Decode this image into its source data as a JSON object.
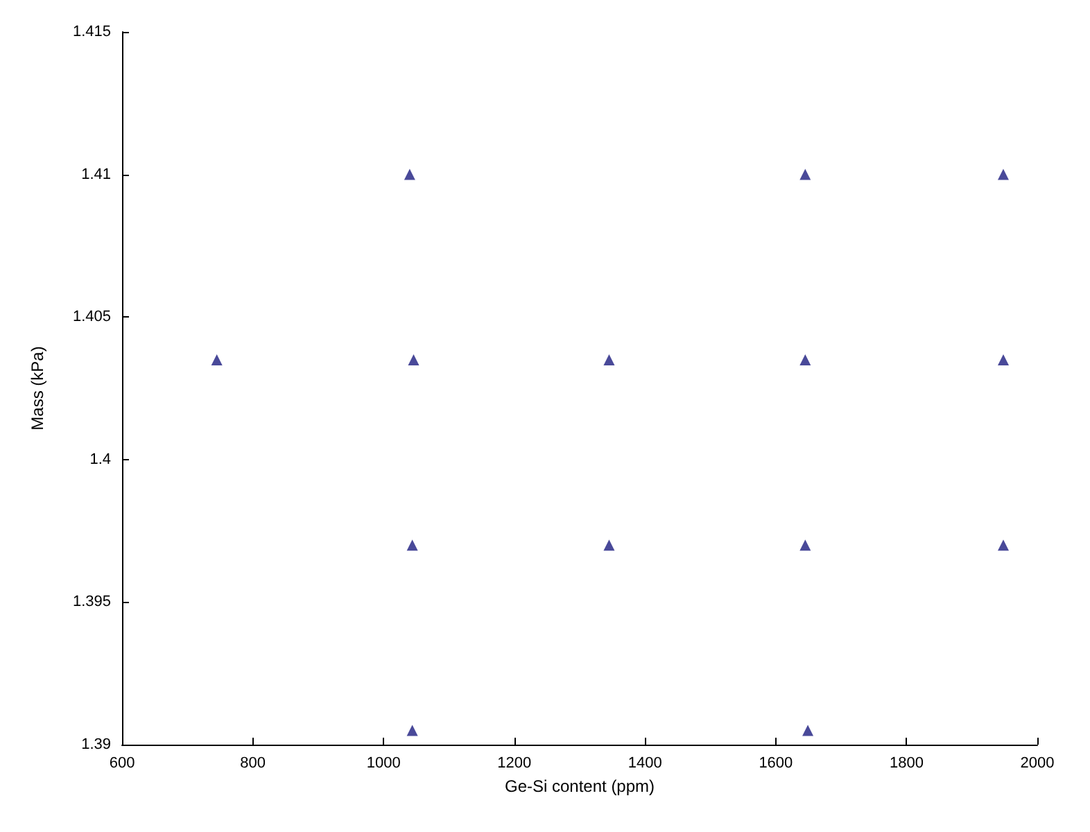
{
  "chart_data": {
    "type": "scatter",
    "xlabel": "Ge-Si content (ppm)",
    "ylabel": "Mass (kPa)",
    "x": [
      1040,
      1645,
      1948,
      745,
      1046,
      1345,
      1645,
      1948,
      1044,
      1345,
      1645,
      1948,
      1044,
      1649
    ],
    "series": [
      {
        "color": "#1c1c80",
        "values": [
          1.41,
          1.41,
          1.41,
          1.4035,
          1.4035,
          1.4035,
          1.4035,
          1.4035,
          1.397,
          1.397,
          1.397,
          1.397,
          1.3905,
          1.3905
        ]
      }
    ],
    "xlim": [
      600,
      2000
    ],
    "xticks": [
      600,
      800,
      1000,
      1200,
      1400,
      1600,
      1800,
      2000
    ],
    "ylim": [
      1.39,
      1.415
    ],
    "yticks": [
      1.39,
      1.395,
      1.4,
      1.405,
      1.41,
      1.415
    ],
    "grid": false,
    "marker": "triangle"
  }
}
